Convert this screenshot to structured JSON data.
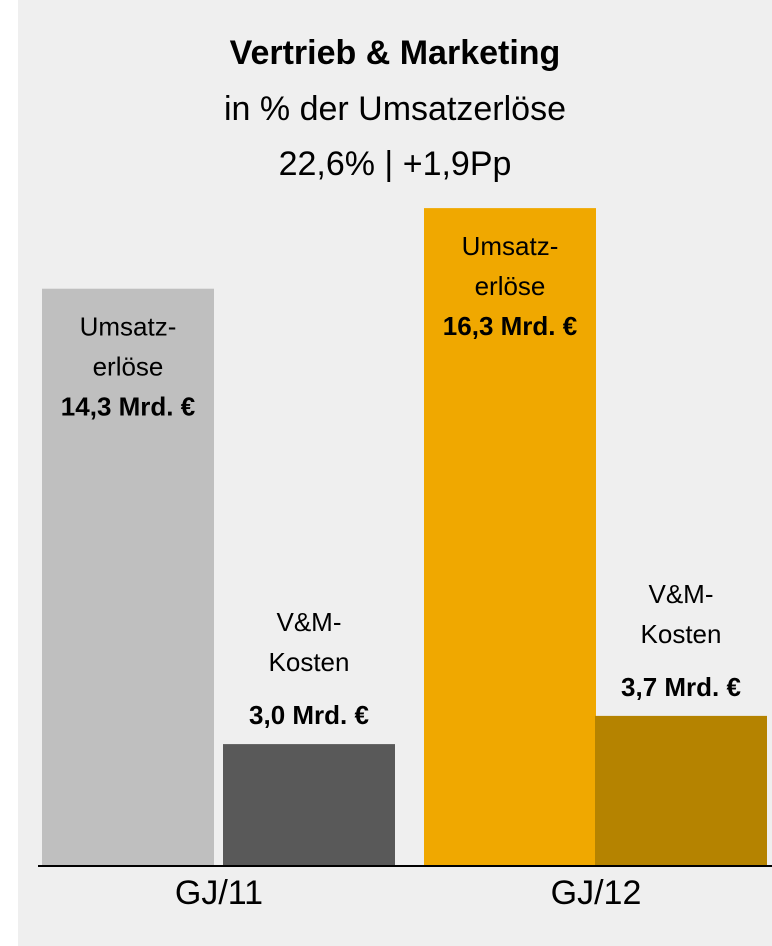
{
  "chart_data": {
    "type": "bar",
    "title": "Vertrieb & Marketing",
    "subtitle": [
      "in % der Umsatzerlöse",
      "22,6% | +1,9Pp"
    ],
    "categories": [
      "GJ/11",
      "GJ/12"
    ],
    "series": [
      {
        "name": "Umsatz-\nerlöse",
        "colors": [
          "#bfbfbf",
          "#f0a800"
        ],
        "values": [
          14.3,
          16.3
        ],
        "value_labels": [
          "14,3 Mrd. €",
          "16,3 Mrd. €"
        ]
      },
      {
        "name": "V&M-\nKosten",
        "colors": [
          "#595959",
          "#b58300"
        ],
        "values": [
          3.0,
          3.7
        ],
        "value_labels": [
          "3,0 Mrd. €",
          "3,7 Mrd. €"
        ]
      }
    ]
  }
}
